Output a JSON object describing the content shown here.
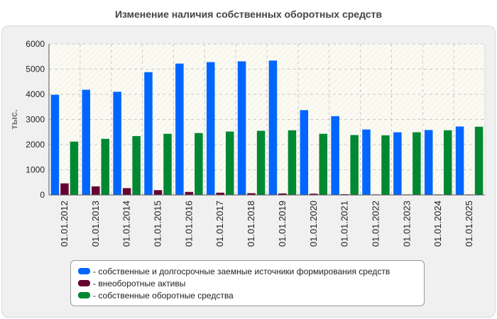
{
  "chart_data": {
    "type": "bar",
    "title": "Изменение наличия собственных оборотных средств",
    "ylabel": "тыс.",
    "xlabel": "",
    "ylim": [
      0,
      6000
    ],
    "yticks": [
      0,
      1000,
      2000,
      3000,
      4000,
      5000,
      6000
    ],
    "grid": true,
    "legend_position": "bottom",
    "categories": [
      "01.01.2012",
      "01.01.2013",
      "01.01.2014",
      "01.01.2015",
      "01.01.2016",
      "01.01.2017",
      "01.01.2018",
      "01.01.2019",
      "01.01.2020",
      "01.01.2021",
      "01.01.2022",
      "01.01.2023",
      "01.01.2024",
      "01.01.2025"
    ],
    "series": [
      {
        "name": "- собственные и долгосрочные заемные источники формирования средств",
        "color": "#0066ff",
        "values": [
          3980,
          4180,
          4100,
          4880,
          5220,
          5280,
          5310,
          5340,
          3370,
          3130,
          2600,
          2490,
          2580,
          2720
        ]
      },
      {
        "name": "- внеоборотные активы",
        "color": "#660033",
        "values": [
          460,
          340,
          270,
          190,
          120,
          90,
          70,
          60,
          50,
          30,
          20,
          20,
          20,
          20
        ]
      },
      {
        "name": "- собственные оборотные средства",
        "color": "#008833",
        "values": [
          2120,
          2230,
          2340,
          2430,
          2460,
          2520,
          2550,
          2570,
          2430,
          2380,
          2370,
          2490,
          2570,
          2710
        ]
      }
    ]
  }
}
